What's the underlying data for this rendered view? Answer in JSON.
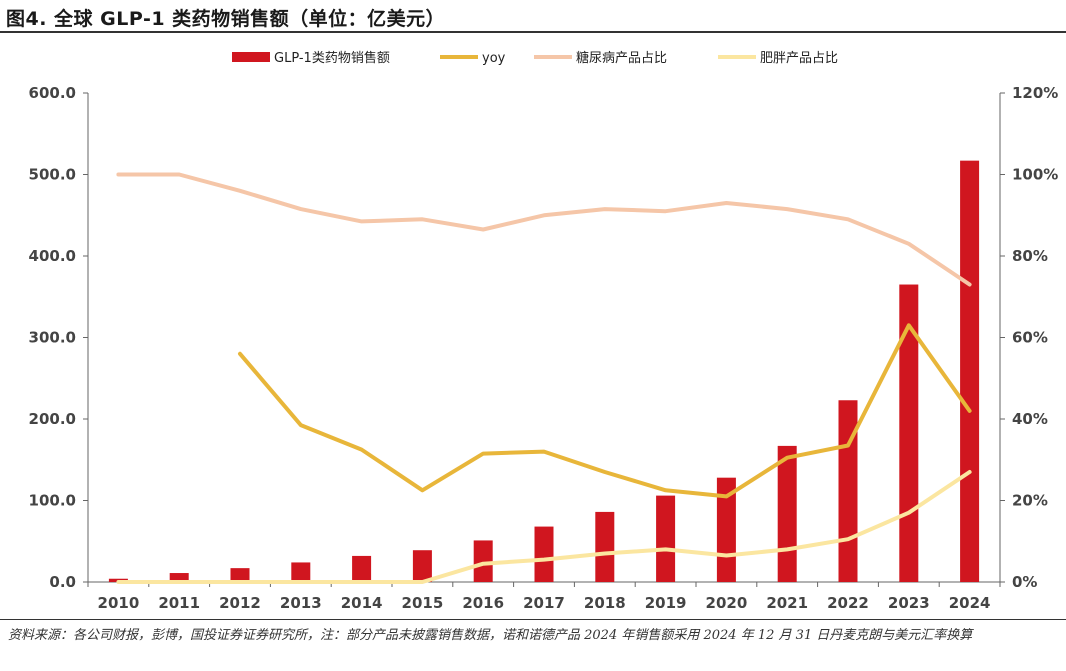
{
  "title": "图4. 全球 GLP-1 类药物销售额（单位：亿美元）",
  "source": "资料来源：各公司财报，彭博，国投证券证券研究所，注：部分产品未披露销售数据，诺和诺德产品 2024 年销售额采用 2024 年 12 月 31 日丹麦克朗与美元汇率换算",
  "colors": {
    "sales_bar": "#d0161f",
    "yoy_line": "#e8b63a",
    "diabetes_line": "#f5c6a8",
    "obesity_line": "#fbe6a0",
    "axis": "#666666"
  },
  "chart_data": {
    "type": "bar+line",
    "categories": [
      "2010",
      "2011",
      "2012",
      "2013",
      "2014",
      "2015",
      "2016",
      "2017",
      "2018",
      "2019",
      "2020",
      "2021",
      "2022",
      "2023",
      "2024"
    ],
    "series": [
      {
        "name": "GLP-1类药物销售额",
        "type": "bar",
        "axis": "left",
        "values": [
          4,
          11,
          17,
          24,
          32,
          39,
          51,
          68,
          86,
          106,
          128,
          167,
          223,
          365,
          517
        ]
      },
      {
        "name": "yoy",
        "type": "line",
        "axis": "right",
        "values": [
          null,
          null,
          56,
          38.5,
          32.5,
          22.5,
          31.5,
          32,
          27,
          22.5,
          21,
          30.5,
          33.5,
          63,
          42
        ]
      },
      {
        "name": "糖尿病产品占比",
        "type": "line",
        "axis": "right",
        "values": [
          100,
          100,
          96,
          91.5,
          88.5,
          89,
          86.5,
          90,
          91.5,
          91,
          93,
          91.5,
          89,
          83,
          73
        ]
      },
      {
        "name": "肥胖产品占比",
        "type": "line",
        "axis": "right",
        "values": [
          0,
          0,
          0,
          0,
          0,
          0,
          4.5,
          5.5,
          7,
          8,
          6.5,
          8,
          10.5,
          17,
          27
        ]
      }
    ],
    "left_axis": {
      "min": 0,
      "max": 600,
      "ticks": [
        "0.0",
        "100.0",
        "200.0",
        "300.0",
        "400.0",
        "500.0",
        "600.0"
      ]
    },
    "right_axis": {
      "min": 0,
      "max": 120,
      "ticks": [
        "0%",
        "20%",
        "40%",
        "60%",
        "80%",
        "100%",
        "120%"
      ]
    },
    "legend_position": "top",
    "grid": false
  }
}
